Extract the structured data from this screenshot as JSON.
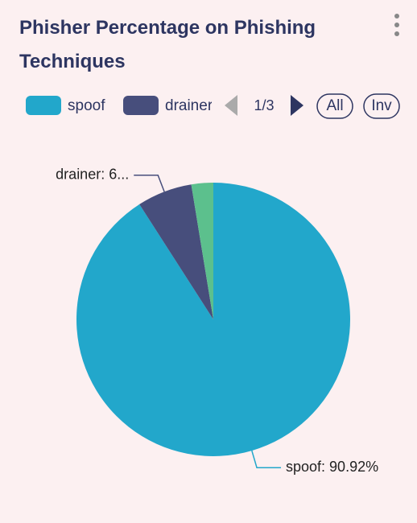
{
  "chart_data": {
    "type": "pie",
    "title": "Phisher Percentage on Phishing Techniques",
    "categories": [
      "spoof",
      "drainer",
      null
    ],
    "values": [
      90.92,
      6.5,
      2.58
    ],
    "value_labels": [
      "spoof: 90.92%",
      "drainer: 6...",
      null
    ],
    "colors": [
      "#22a7cb",
      "#474e7c",
      "#5cc08d"
    ],
    "legend_page": "1/3",
    "legend_buttons": [
      "All",
      "Inv"
    ]
  }
}
